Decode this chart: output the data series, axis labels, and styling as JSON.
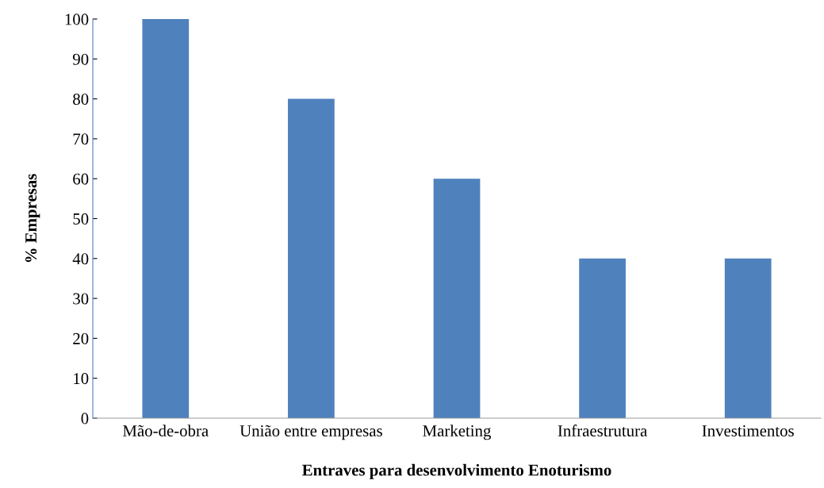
{
  "chart_data": {
    "type": "bar",
    "xlabel": "Entraves para desenvolvimento Enoturismo",
    "ylabel": "% Empresas",
    "categories": [
      "Mão-de-obra",
      "União entre empresas",
      "Marketing",
      "Infraestrutura",
      "Investimentos"
    ],
    "values": [
      100,
      80,
      60,
      40,
      40
    ],
    "color": "#4f81bd",
    "ylim": [
      0,
      100
    ],
    "yticks": [
      0,
      10,
      20,
      30,
      40,
      50,
      60,
      70,
      80,
      90,
      100
    ],
    "grid": false,
    "legend": false
  }
}
